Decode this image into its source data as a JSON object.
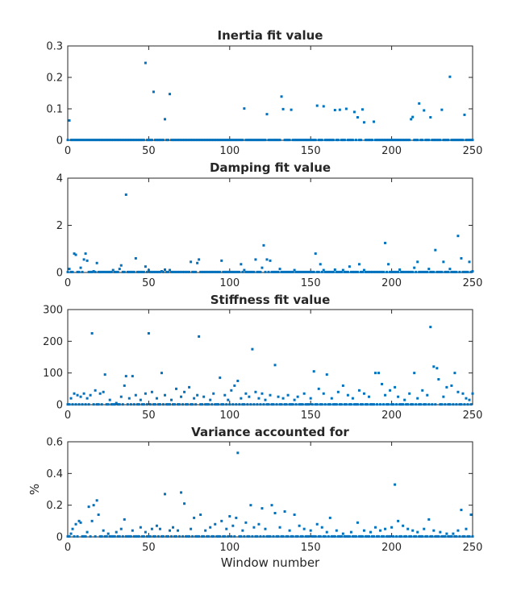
{
  "figure": {
    "xlabel": "Window number",
    "marker_color": "#0072BD",
    "axis_color": "#262626",
    "background": "#ffffff"
  },
  "chart_data": [
    {
      "type": "scatter",
      "title": "Inertia fit value",
      "xlabel": "",
      "ylabel": "",
      "xlim": [
        0,
        250
      ],
      "ylim": [
        0,
        0.3
      ],
      "xticks": [
        0,
        50,
        100,
        150,
        200,
        250
      ],
      "yticks": [
        0,
        0.1,
        0.2,
        0.3
      ],
      "grid": false,
      "baseline": 0.001,
      "points": [
        [
          1,
          0.063
        ],
        [
          48,
          0.246
        ],
        [
          53,
          0.154
        ],
        [
          60,
          0.067
        ],
        [
          63,
          0.147
        ],
        [
          109,
          0.101
        ],
        [
          123,
          0.083
        ],
        [
          132,
          0.139
        ],
        [
          133,
          0.099
        ],
        [
          138,
          0.097
        ],
        [
          154,
          0.11
        ],
        [
          158,
          0.108
        ],
        [
          165,
          0.096
        ],
        [
          168,
          0.097
        ],
        [
          172,
          0.1
        ],
        [
          177,
          0.09
        ],
        [
          179,
          0.073
        ],
        [
          182,
          0.098
        ],
        [
          183,
          0.057
        ],
        [
          189,
          0.059
        ],
        [
          212,
          0.067
        ],
        [
          213,
          0.074
        ],
        [
          217,
          0.117
        ],
        [
          220,
          0.095
        ],
        [
          224,
          0.073
        ],
        [
          231,
          0.097
        ],
        [
          236,
          0.202
        ],
        [
          245,
          0.081
        ]
      ]
    },
    {
      "type": "scatter",
      "title": "Damping fit value",
      "xlabel": "",
      "ylabel": "",
      "xlim": [
        0,
        250
      ],
      "ylim": [
        0,
        4
      ],
      "xticks": [
        0,
        50,
        100,
        150,
        200,
        250
      ],
      "yticks": [
        0,
        2,
        4
      ],
      "grid": false,
      "baseline": 0.02,
      "points": [
        [
          1,
          0.15
        ],
        [
          4,
          0.8
        ],
        [
          5,
          0.75
        ],
        [
          8,
          0.2
        ],
        [
          10,
          0.55
        ],
        [
          11,
          0.8
        ],
        [
          12,
          0.5
        ],
        [
          16,
          0.05
        ],
        [
          18,
          0.4
        ],
        [
          28,
          0.1
        ],
        [
          32,
          0.15
        ],
        [
          33,
          0.3
        ],
        [
          36,
          3.3
        ],
        [
          42,
          0.6
        ],
        [
          48,
          0.25
        ],
        [
          50,
          0.1
        ],
        [
          58,
          0.05
        ],
        [
          60,
          0.12
        ],
        [
          63,
          0.1
        ],
        [
          76,
          0.45
        ],
        [
          80,
          0.4
        ],
        [
          81,
          0.55
        ],
        [
          95,
          0.5
        ],
        [
          107,
          0.35
        ],
        [
          109,
          0.1
        ],
        [
          116,
          0.55
        ],
        [
          120,
          0.2
        ],
        [
          121,
          1.15
        ],
        [
          123,
          0.55
        ],
        [
          125,
          0.5
        ],
        [
          131,
          0.15
        ],
        [
          140,
          0.1
        ],
        [
          153,
          0.8
        ],
        [
          156,
          0.35
        ],
        [
          158,
          0.1
        ],
        [
          165,
          0.12
        ],
        [
          170,
          0.1
        ],
        [
          174,
          0.25
        ],
        [
          180,
          0.35
        ],
        [
          183,
          0.1
        ],
        [
          196,
          1.25
        ],
        [
          198,
          0.35
        ],
        [
          205,
          0.12
        ],
        [
          214,
          0.2
        ],
        [
          216,
          0.45
        ],
        [
          223,
          0.15
        ],
        [
          227,
          0.95
        ],
        [
          232,
          0.45
        ],
        [
          236,
          0.15
        ],
        [
          241,
          1.55
        ],
        [
          243,
          0.6
        ],
        [
          248,
          0.45
        ],
        [
          250,
          0.05
        ]
      ]
    },
    {
      "type": "scatter",
      "title": "Stiffness fit value",
      "xlabel": "",
      "ylabel": "",
      "xlim": [
        0,
        250
      ],
      "ylim": [
        0,
        300
      ],
      "xticks": [
        0,
        50,
        100,
        150,
        200,
        250
      ],
      "yticks": [
        0,
        100,
        200,
        300
      ],
      "grid": false,
      "baseline": 1,
      "points": [
        [
          2,
          20
        ],
        [
          4,
          35
        ],
        [
          6,
          30
        ],
        [
          8,
          25
        ],
        [
          10,
          35
        ],
        [
          12,
          20
        ],
        [
          14,
          30
        ],
        [
          15,
          225
        ],
        [
          17,
          45
        ],
        [
          20,
          35
        ],
        [
          22,
          40
        ],
        [
          23,
          95
        ],
        [
          26,
          15
        ],
        [
          30,
          5
        ],
        [
          33,
          25
        ],
        [
          35,
          60
        ],
        [
          36,
          90
        ],
        [
          38,
          20
        ],
        [
          40,
          90
        ],
        [
          42,
          30
        ],
        [
          45,
          15
        ],
        [
          48,
          35
        ],
        [
          50,
          225
        ],
        [
          52,
          40
        ],
        [
          55,
          20
        ],
        [
          58,
          100
        ],
        [
          60,
          30
        ],
        [
          64,
          15
        ],
        [
          67,
          50
        ],
        [
          70,
          25
        ],
        [
          72,
          40
        ],
        [
          75,
          55
        ],
        [
          78,
          20
        ],
        [
          80,
          30
        ],
        [
          81,
          215
        ],
        [
          84,
          25
        ],
        [
          88,
          15
        ],
        [
          90,
          35
        ],
        [
          94,
          85
        ],
        [
          97,
          30
        ],
        [
          99,
          15
        ],
        [
          101,
          45
        ],
        [
          103,
          60
        ],
        [
          105,
          75
        ],
        [
          107,
          20
        ],
        [
          110,
          35
        ],
        [
          112,
          25
        ],
        [
          114,
          175
        ],
        [
          116,
          40
        ],
        [
          118,
          20
        ],
        [
          120,
          35
        ],
        [
          122,
          15
        ],
        [
          125,
          30
        ],
        [
          128,
          125
        ],
        [
          130,
          25
        ],
        [
          133,
          20
        ],
        [
          136,
          30
        ],
        [
          140,
          15
        ],
        [
          142,
          25
        ],
        [
          146,
          35
        ],
        [
          150,
          20
        ],
        [
          152,
          105
        ],
        [
          155,
          50
        ],
        [
          158,
          35
        ],
        [
          160,
          95
        ],
        [
          163,
          20
        ],
        [
          167,
          40
        ],
        [
          170,
          60
        ],
        [
          173,
          30
        ],
        [
          176,
          20
        ],
        [
          180,
          45
        ],
        [
          183,
          35
        ],
        [
          186,
          25
        ],
        [
          190,
          100
        ],
        [
          192,
          100
        ],
        [
          194,
          65
        ],
        [
          196,
          30
        ],
        [
          199,
          45
        ],
        [
          202,
          55
        ],
        [
          204,
          25
        ],
        [
          208,
          15
        ],
        [
          211,
          35
        ],
        [
          214,
          100
        ],
        [
          216,
          20
        ],
        [
          219,
          45
        ],
        [
          222,
          30
        ],
        [
          224,
          245
        ],
        [
          226,
          120
        ],
        [
          228,
          115
        ],
        [
          229,
          80
        ],
        [
          232,
          25
        ],
        [
          234,
          55
        ],
        [
          237,
          60
        ],
        [
          239,
          100
        ],
        [
          241,
          40
        ],
        [
          244,
          35
        ],
        [
          246,
          20
        ],
        [
          248,
          15
        ],
        [
          250,
          35
        ]
      ]
    },
    {
      "type": "scatter",
      "title": "Variance accounted for",
      "xlabel": "Window number",
      "ylabel": "%",
      "xlim": [
        0,
        250
      ],
      "ylim": [
        0,
        0.6
      ],
      "xticks": [
        0,
        50,
        100,
        150,
        200,
        250
      ],
      "yticks": [
        0,
        0.2,
        0.4,
        0.6
      ],
      "grid": false,
      "baseline": 0.003,
      "points": [
        [
          2,
          0.02
        ],
        [
          3,
          0.05
        ],
        [
          5,
          0.08
        ],
        [
          7,
          0.1
        ],
        [
          8,
          0.09
        ],
        [
          12,
          0.03
        ],
        [
          13,
          0.19
        ],
        [
          15,
          0.1
        ],
        [
          16,
          0.2
        ],
        [
          18,
          0.23
        ],
        [
          19,
          0.14
        ],
        [
          22,
          0.04
        ],
        [
          25,
          0.02
        ],
        [
          30,
          0.03
        ],
        [
          33,
          0.05
        ],
        [
          35,
          0.11
        ],
        [
          40,
          0.04
        ],
        [
          45,
          0.06
        ],
        [
          48,
          0.03
        ],
        [
          52,
          0.05
        ],
        [
          55,
          0.07
        ],
        [
          57,
          0.05
        ],
        [
          60,
          0.27
        ],
        [
          63,
          0.04
        ],
        [
          65,
          0.06
        ],
        [
          68,
          0.04
        ],
        [
          70,
          0.28
        ],
        [
          72,
          0.21
        ],
        [
          76,
          0.05
        ],
        [
          78,
          0.12
        ],
        [
          82,
          0.14
        ],
        [
          85,
          0.04
        ],
        [
          88,
          0.06
        ],
        [
          91,
          0.08
        ],
        [
          95,
          0.1
        ],
        [
          98,
          0.05
        ],
        [
          100,
          0.13
        ],
        [
          102,
          0.07
        ],
        [
          104,
          0.12
        ],
        [
          105,
          0.53
        ],
        [
          108,
          0.04
        ],
        [
          110,
          0.09
        ],
        [
          113,
          0.2
        ],
        [
          115,
          0.06
        ],
        [
          118,
          0.08
        ],
        [
          120,
          0.18
        ],
        [
          122,
          0.05
        ],
        [
          126,
          0.2
        ],
        [
          128,
          0.15
        ],
        [
          131,
          0.06
        ],
        [
          134,
          0.16
        ],
        [
          137,
          0.04
        ],
        [
          140,
          0.14
        ],
        [
          143,
          0.07
        ],
        [
          146,
          0.05
        ],
        [
          150,
          0.04
        ],
        [
          154,
          0.08
        ],
        [
          157,
          0.06
        ],
        [
          160,
          0.03
        ],
        [
          162,
          0.12
        ],
        [
          166,
          0.04
        ],
        [
          170,
          0.02
        ],
        [
          175,
          0.03
        ],
        [
          179,
          0.09
        ],
        [
          183,
          0.04
        ],
        [
          187,
          0.03
        ],
        [
          190,
          0.06
        ],
        [
          193,
          0.04
        ],
        [
          196,
          0.05
        ],
        [
          200,
          0.06
        ],
        [
          202,
          0.33
        ],
        [
          204,
          0.1
        ],
        [
          207,
          0.07
        ],
        [
          210,
          0.05
        ],
        [
          213,
          0.04
        ],
        [
          216,
          0.03
        ],
        [
          220,
          0.05
        ],
        [
          223,
          0.11
        ],
        [
          226,
          0.04
        ],
        [
          230,
          0.03
        ],
        [
          234,
          0.02
        ],
        [
          238,
          0.02
        ],
        [
          241,
          0.04
        ],
        [
          243,
          0.17
        ],
        [
          246,
          0.05
        ],
        [
          249,
          0.14
        ]
      ]
    }
  ]
}
